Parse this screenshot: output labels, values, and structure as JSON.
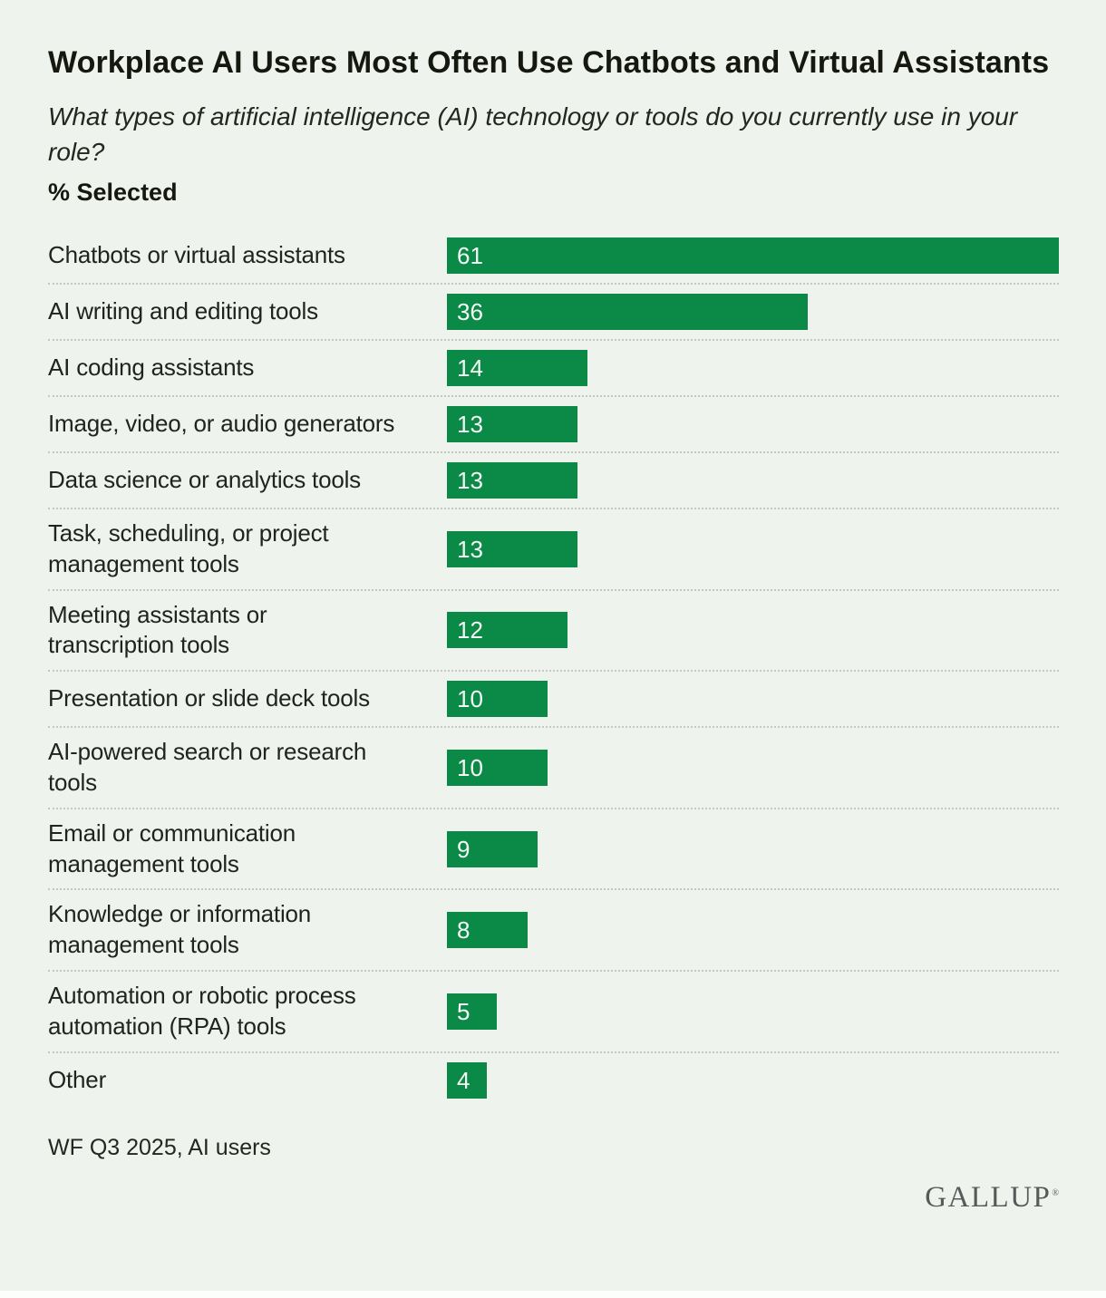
{
  "header": {
    "title": "Workplace AI Users Most Often Use Chatbots and Virtual Assistants",
    "subtitle": "What types of artificial intelligence (AI) technology or tools do you currently use in your role?",
    "unit_label": "% Selected"
  },
  "chart_data": {
    "type": "bar",
    "orientation": "horizontal",
    "title": "Workplace AI Users Most Often Use Chatbots and Virtual Assistants",
    "subtitle": "What types of artificial intelligence (AI) technology or tools do you currently use in your role?",
    "unit": "% Selected",
    "categories": [
      "Chatbots or virtual assistants",
      "AI writing and editing tools",
      "AI coding assistants",
      "Image, video, or audio generators",
      "Data science or analytics tools",
      "Task, scheduling, or project\nmanagement tools",
      "Meeting assistants or\ntranscription tools",
      "Presentation or slide deck tools",
      "AI-powered search or research\ntools",
      "Email or communication\nmanagement tools",
      "Knowledge or information\nmanagement tools",
      "Automation or robotic process\nautomation (RPA) tools",
      "Other"
    ],
    "values": [
      61,
      36,
      14,
      13,
      13,
      13,
      12,
      10,
      10,
      9,
      8,
      5,
      4
    ],
    "xlim": [
      0,
      61
    ],
    "grid": false,
    "legend": false,
    "value_labels_inside_bars": true,
    "bar_color": "#0b8a47",
    "value_label_color": "#f6faf6"
  },
  "footer": {
    "source": "WF Q3 2025, AI users",
    "brand": "GALLUP",
    "brand_mark": "®"
  },
  "colors": {
    "background": "#eef4ed",
    "bar": "#0b8a47",
    "text": "#20231f",
    "separator": "#c3c8c1",
    "logo": "#58595b"
  }
}
